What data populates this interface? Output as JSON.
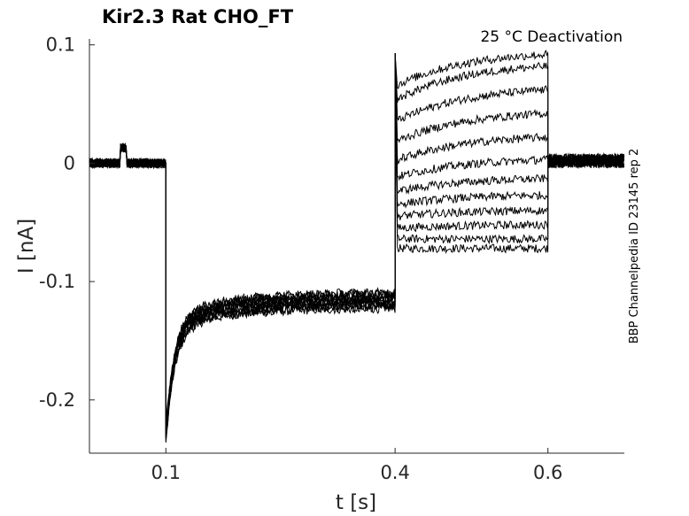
{
  "chart_data": {
    "type": "line",
    "title": "Kir2.3  Rat  CHO_FT",
    "annotation": "25 °C  Deactivation",
    "side_label": "BBP Channelpedia ID 23145 rep 2",
    "xlabel": "t [s]",
    "ylabel": "I [nA]",
    "xlim": [
      0.0,
      0.7
    ],
    "ylim": [
      -0.245,
      0.105
    ],
    "xticks": [
      0.1,
      0.4,
      0.6
    ],
    "xtick_labels": [
      "0.1",
      "0.4",
      "0.6"
    ],
    "yticks": [
      0.1,
      0,
      -0.1,
      -0.2
    ],
    "ytick_labels": [
      "0.1",
      "0",
      "-0.1",
      "-0.2"
    ],
    "grid": false,
    "line_color": "#000000",
    "protocol": {
      "holding_end": 0.1,
      "prepulse_end": 0.4,
      "test_end": 0.6,
      "holding_current": 0.0,
      "prepulse_peak": -0.21,
      "prepulse_steady": -0.115,
      "test_onset_spike": 0.093
    },
    "series": [
      {
        "test_start": -0.072,
        "test_end": -0.072
      },
      {
        "test_start": -0.064,
        "test_end": -0.064
      },
      {
        "test_start": -0.055,
        "test_end": -0.052
      },
      {
        "test_start": -0.045,
        "test_end": -0.04
      },
      {
        "test_start": -0.035,
        "test_end": -0.027
      },
      {
        "test_start": -0.024,
        "test_end": -0.013
      },
      {
        "test_start": -0.012,
        "test_end": 0.003
      },
      {
        "test_start": 0.002,
        "test_end": 0.022
      },
      {
        "test_start": 0.018,
        "test_end": 0.042
      },
      {
        "test_start": 0.035,
        "test_end": 0.062
      },
      {
        "test_start": 0.053,
        "test_end": 0.082
      },
      {
        "test_start": 0.065,
        "test_end": 0.092
      }
    ]
  }
}
